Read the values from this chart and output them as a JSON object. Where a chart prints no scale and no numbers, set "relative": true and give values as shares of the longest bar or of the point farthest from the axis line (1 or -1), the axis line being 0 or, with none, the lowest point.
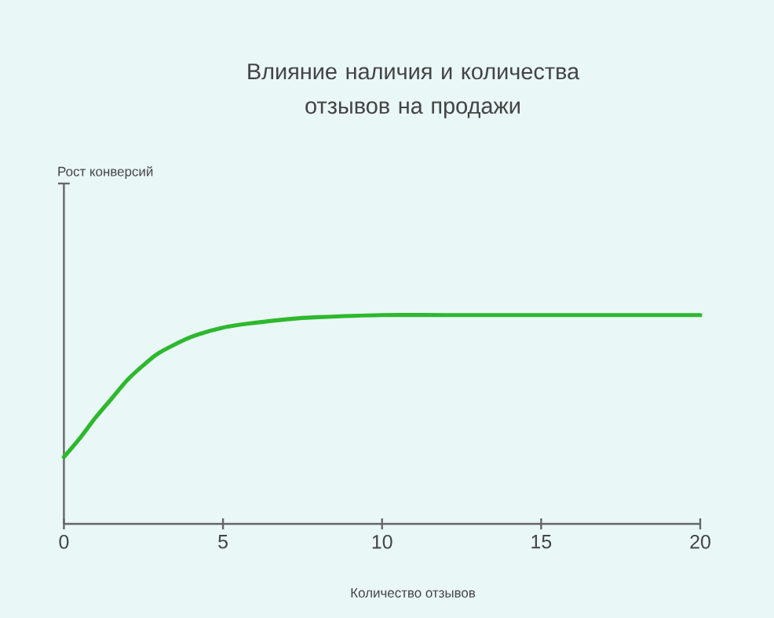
{
  "chart_data": {
    "type": "line",
    "title": "Влияние наличия и количества отзывов на продажи",
    "xlabel": "Количество отзывов",
    "annotations": [
      "Рост конверсий"
    ],
    "relative": true,
    "x": [
      0,
      0.5,
      1,
      1.5,
      2,
      2.5,
      3,
      4,
      5,
      6,
      7,
      8,
      10,
      12,
      15,
      20
    ],
    "series": [
      {
        "color": "#2db82d",
        "values": [
          0.32,
          0.41,
          0.51,
          0.6,
          0.69,
          0.76,
          0.82,
          0.895,
          0.94,
          0.963,
          0.98,
          0.99,
          1.0,
          1.0,
          1.0,
          1.0
        ]
      }
    ],
    "xlim": [
      0,
      20
    ],
    "xticks": [
      0,
      5,
      10,
      15,
      20
    ],
    "grid": false,
    "marker": "none",
    "line_style": "solid"
  }
}
